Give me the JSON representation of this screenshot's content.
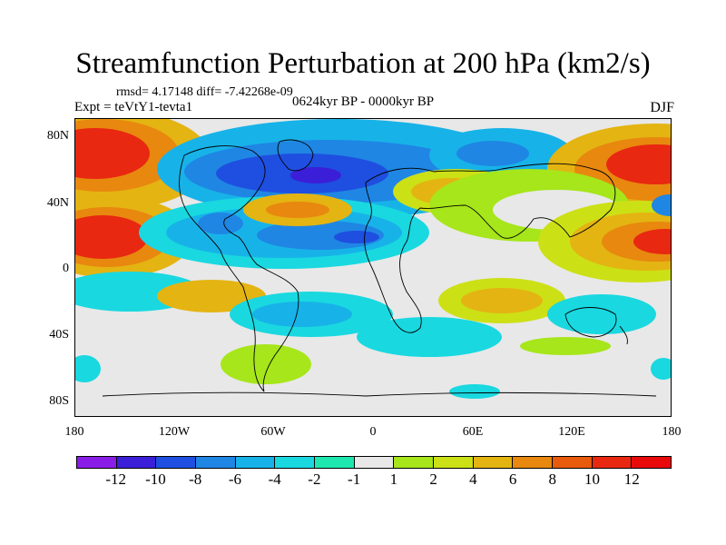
{
  "title": "Streamfunction Perturbation at 200 hPa (km2/s)",
  "stats": "rmsd= 4.17148 diff= -7.42268e-09",
  "expt": "Expt = teVtY1-tevta1",
  "period": "0624kyr BP - 0000kyr BP",
  "season": "DJF",
  "lat_labels": [
    "80N",
    "40N",
    "0",
    "40S",
    "80S"
  ],
  "lon_labels": [
    "180",
    "120W",
    "60W",
    "0",
    "60E",
    "120E",
    "180"
  ],
  "colorbar": {
    "labels": [
      "-12",
      "-10",
      "-8",
      "-6",
      "-4",
      "-2",
      "-1",
      "1",
      "2",
      "4",
      "6",
      "8",
      "10",
      "12"
    ],
    "colors": [
      "#8a1ee8",
      "#3b1fd8",
      "#1e4fe0",
      "#1f86e4",
      "#17b3e8",
      "#19d8e0",
      "#1ee8b0",
      "#e8e8e8",
      "#a6e61a",
      "#cce016",
      "#e4b412",
      "#e8880f",
      "#e85a0c",
      "#e82810",
      "#e80a0a"
    ]
  },
  "map_colors": {
    "background": "#e8e8e8",
    "red": "#e82810",
    "orange": "#e8880f",
    "yellow": "#e4b412",
    "green": "#a6e61a",
    "cyan": "#19d8e0",
    "lightblue": "#17b3e8",
    "blue": "#1f86e4",
    "darkblue": "#1e4fe0"
  }
}
